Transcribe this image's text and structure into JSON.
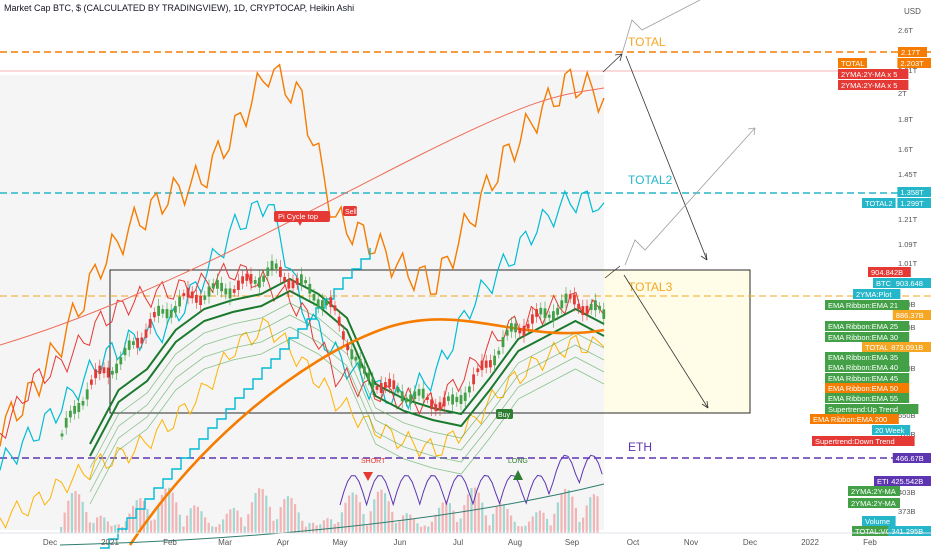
{
  "header": {
    "title": "Market Cap BTC, $ (CALCULATED BY TRADINGVIEW), 1D, CRYPTOCAP, Heikin Ashi"
  },
  "colors": {
    "orange": "#f57c00",
    "total_line": "#f5a623",
    "cyan": "#00bcd4",
    "total2": "#26b6c9",
    "purple": "#5e35b1",
    "green": "#43a047",
    "dark_green": "#1b7a2e",
    "red": "#e53935",
    "salmon": "#ef6c5a",
    "gold": "#ffb300",
    "box": "#2b2b2b"
  },
  "chart_data": {
    "type": "line",
    "title": "Market Cap BTC, $ (CALCULATED BY TRADINGVIEW), 1D, CRYPTOCAP, Heikin Ashi",
    "x_labels": [
      "Dec",
      "2021",
      "Feb",
      "Mar",
      "Apr",
      "May",
      "Jun",
      "Jul",
      "Aug",
      "Sep",
      "Oct",
      "Nov",
      "Dec",
      "2022",
      "Feb"
    ],
    "y_ticks": [
      "2.6T",
      "2.21T",
      "2T",
      "1.8T",
      "1.6T",
      "1.45T",
      "1.21T",
      "1.09T",
      "1.01T",
      "860B",
      "780B",
      "600B",
      "550B",
      "510B",
      "403B",
      "373B"
    ],
    "currency": "USD",
    "series": [
      {
        "name": "TOTAL",
        "values": [
          0.55,
          0.75,
          1.05,
          1.38,
          1.58,
          1.72,
          1.8,
          2.05,
          2.35,
          2.2,
          1.6,
          1.5,
          1.35,
          1.28,
          1.6,
          1.9,
          2.12,
          2.3,
          2.21
        ]
      },
      {
        "name": "TOTAL2",
        "values": [
          0.3,
          0.42,
          0.55,
          0.7,
          0.78,
          0.82,
          1.0,
          1.2,
          1.3,
          0.9,
          0.72,
          0.6,
          0.55,
          0.65,
          0.9,
          1.05,
          1.2,
          1.3,
          1.29
        ]
      },
      {
        "name": "BTC",
        "values": [
          0.5,
          0.68,
          0.75,
          0.88,
          0.95,
          0.98,
          1.0,
          1.05,
          1.0,
          0.92,
          0.7,
          0.65,
          0.62,
          0.6,
          0.72,
          0.85,
          0.9,
          0.95,
          0.9
        ]
      },
      {
        "name": "ETH",
        "values": [
          0.3,
          0.35,
          0.42,
          0.48,
          0.52,
          0.6,
          0.7,
          0.85,
          0.92,
          0.8,
          0.68,
          0.6,
          0.55,
          0.52,
          0.6,
          0.72,
          0.8,
          0.86,
          0.85
        ]
      }
    ],
    "right_axis_tags": [
      {
        "text": "2.17T",
        "color": "#f57c00"
      },
      {
        "text": "TOTAL",
        "color": "#f57c00"
      },
      {
        "text": "2.203T",
        "color": "#f57c00"
      },
      {
        "text": "2YMA:2Y-MA x 5",
        "color": "#e53935"
      },
      {
        "text": "2YMA:2Y-MA x 5",
        "color": "#e53935"
      },
      {
        "text": "1.358T",
        "color": "#26b6c9"
      },
      {
        "text": "TOTAL2",
        "color": "#26b6c9"
      },
      {
        "text": "1.299T",
        "color": "#26b6c9"
      },
      {
        "text": "904.842B",
        "color": "#e53935"
      },
      {
        "text": "BTC",
        "color": "#26b6c9"
      },
      {
        "text": "903.648",
        "color": "#26b6c9"
      },
      {
        "text": "2YMA:Plot",
        "color": "#26b6c9"
      },
      {
        "text": "EMA Ribbon:EMA 21",
        "color": "#43a047"
      },
      {
        "text": "886.37B",
        "color": "#f5a623"
      },
      {
        "text": "EMA Ribbon:EMA 25",
        "color": "#43a047"
      },
      {
        "text": "EMA Ribbon:EMA 30",
        "color": "#43a047"
      },
      {
        "text": "TOTAL3",
        "color": "#f5a623"
      },
      {
        "text": "873.091B",
        "color": "#f5a623"
      },
      {
        "text": "EMA Ribbon:EMA 35",
        "color": "#43a047"
      },
      {
        "text": "EMA Ribbon:EMA 40",
        "color": "#43a047"
      },
      {
        "text": "EMA Ribbon:EMA 45",
        "color": "#43a047"
      },
      {
        "text": "EMA Ribbon:EMA 50",
        "color": "#f57c00"
      },
      {
        "text": "EMA Ribbon:EMA 55",
        "color": "#43a047"
      },
      {
        "text": "Supertrend:Up Trend",
        "color": "#43a047"
      },
      {
        "text": "EMA Ribbon:EMA 200",
        "color": "#f57c00"
      },
      {
        "text": "20 Week",
        "color": "#26b6c9"
      },
      {
        "text": "Supertrend:Down Trend",
        "color": "#e53935"
      },
      {
        "text": "466.67B",
        "color": "#5e35b1"
      },
      {
        "text": "ETH",
        "color": "#5e35b1"
      },
      {
        "text": "425.542B",
        "color": "#5e35b1"
      },
      {
        "text": "2YMA:2Y-MA",
        "color": "#43a047"
      },
      {
        "text": "2YMA:2Y-MA",
        "color": "#43a047"
      },
      {
        "text": "Volume",
        "color": "#26b6c9"
      },
      {
        "text": "TOTAL:VOL",
        "color": "#43a047"
      },
      {
        "text": "341.295B",
        "color": "#26b6c9"
      }
    ],
    "annotations": {
      "total": "TOTAL",
      "total2": "TOTAL2",
      "total3": "TOTAL3",
      "eth": "ETH",
      "pi_cycle": "Pi Cycle top",
      "sell": "Sell",
      "buy": "Buy",
      "long": "LONG",
      "short": "SHORT"
    },
    "grid": false
  }
}
